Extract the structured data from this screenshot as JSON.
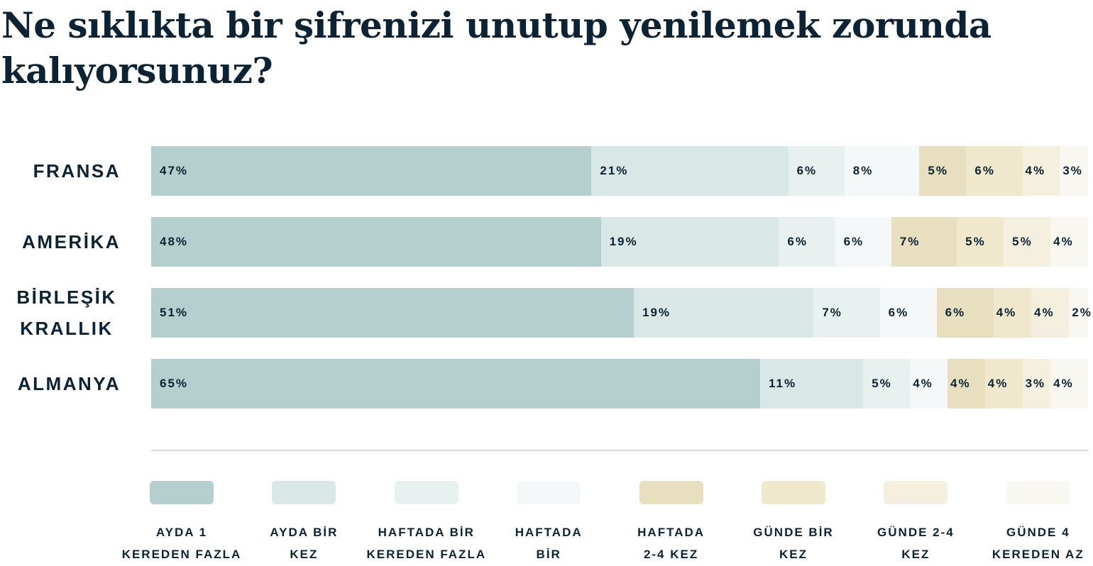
{
  "chart_data": {
    "type": "bar",
    "orientation": "horizontal",
    "stacked": true,
    "title": "Ne sıklıkta bir şifrenizi unutup yenilemek zorunda kalıyorsunuz?",
    "categories": [
      "FRANSA",
      "AMERİKA",
      "BİRLEŞİK KRALLIK",
      "ALMANYA"
    ],
    "unit": "%",
    "legend_position": "bottom",
    "grid": false,
    "series": [
      {
        "name": "AYDA 1 KEREDEN FAZLA",
        "color": "#b5cfcf",
        "values": [
          47,
          48,
          51,
          65
        ]
      },
      {
        "name": "AYDA BİR KEZ",
        "color": "#d9e7e6",
        "values": [
          21,
          19,
          19,
          11
        ]
      },
      {
        "name": "HAFTADA BİR KEREDEN FAZLA",
        "color": "#e8f1f0",
        "values": [
          6,
          6,
          7,
          5
        ]
      },
      {
        "name": "HAFTADA BİR",
        "color": "#f4f8f8",
        "values": [
          8,
          6,
          6,
          4
        ]
      },
      {
        "name": "HAFTADA 2-4 KEZ",
        "color": "#e8dfc0",
        "values": [
          5,
          7,
          6,
          4
        ]
      },
      {
        "name": "GÜNDE BİR KEZ",
        "color": "#f0e8cc",
        "values": [
          6,
          5,
          4,
          4
        ]
      },
      {
        "name": "GÜNDE 2-4 KEZ",
        "color": "#f4efdf",
        "values": [
          4,
          5,
          4,
          3
        ]
      },
      {
        "name": "GÜNDE 4 KEREDEN AZ",
        "color": "#f8f7f1",
        "values": [
          3,
          4,
          2,
          4
        ]
      }
    ]
  }
}
